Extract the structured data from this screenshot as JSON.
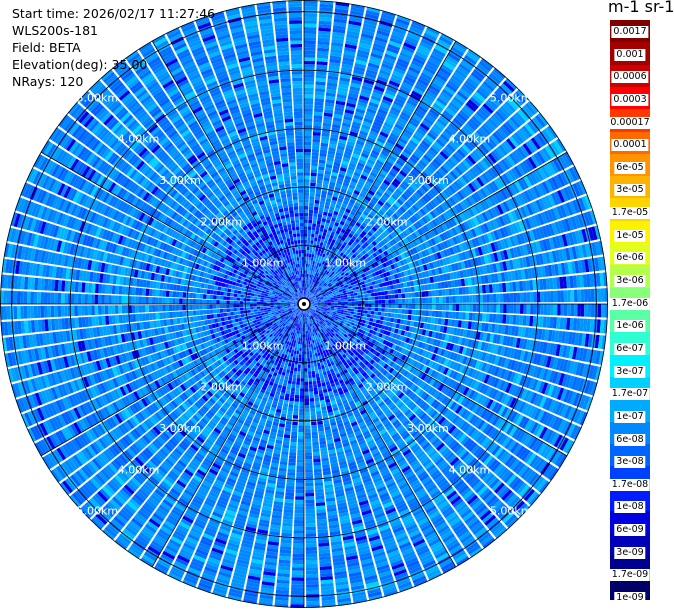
{
  "info": {
    "start_time": "Start time: 2026/02/17 11:27:46",
    "instrument": "WLS200s-181",
    "field": "Field: BETA",
    "elevation": "Elevation(deg): 35.00",
    "nrays": "NRays: 120"
  },
  "colorbar": {
    "title": "m-1 sr-1",
    "levels": [
      "0.0017",
      "0.001",
      "0.0006",
      "0.0003",
      "0.00017",
      "0.0001",
      "6e-05",
      "3e-05",
      "1.7e-05",
      "1e-05",
      "6e-06",
      "3e-06",
      "1.7e-06",
      "1e-06",
      "6e-07",
      "3e-07",
      "1.7e-07",
      "1e-07",
      "6e-08",
      "3e-08",
      "1.7e-08",
      "1e-08",
      "6e-09",
      "3e-09",
      "1.7e-09",
      "1e-09"
    ],
    "colors": [
      "#800000",
      "#a50000",
      "#cc0000",
      "#ff0000",
      "#ff3800",
      "#ff6a00",
      "#ff9300",
      "#ffb300",
      "#ffd500",
      "#fff200",
      "#e1ff1e",
      "#b4ff4b",
      "#87ff78",
      "#5affa5",
      "#2dffd2",
      "#00f0ff",
      "#00d0ff",
      "#00aaff",
      "#0088ff",
      "#0064ff",
      "#0040ff",
      "#001cff",
      "#0000e0",
      "#0000b8",
      "#000090",
      "#000068"
    ]
  },
  "chart_data": {
    "type": "heatmap",
    "projection": "polar-ppi",
    "field": "BETA",
    "units": "m-1 sr-1",
    "elevation_deg": 35.0,
    "n_rays": 120,
    "range_km_max": 5.2,
    "range_rings_km": [
      1,
      2,
      3,
      4,
      5
    ],
    "range_ring_labels": [
      "1.00km",
      "2.00km",
      "3.00km",
      "4.00km",
      "5.00km"
    ],
    "dominant_value_range": [
      "6e-08",
      "1.7e-07"
    ],
    "colorscale": "jet",
    "grid": true
  }
}
